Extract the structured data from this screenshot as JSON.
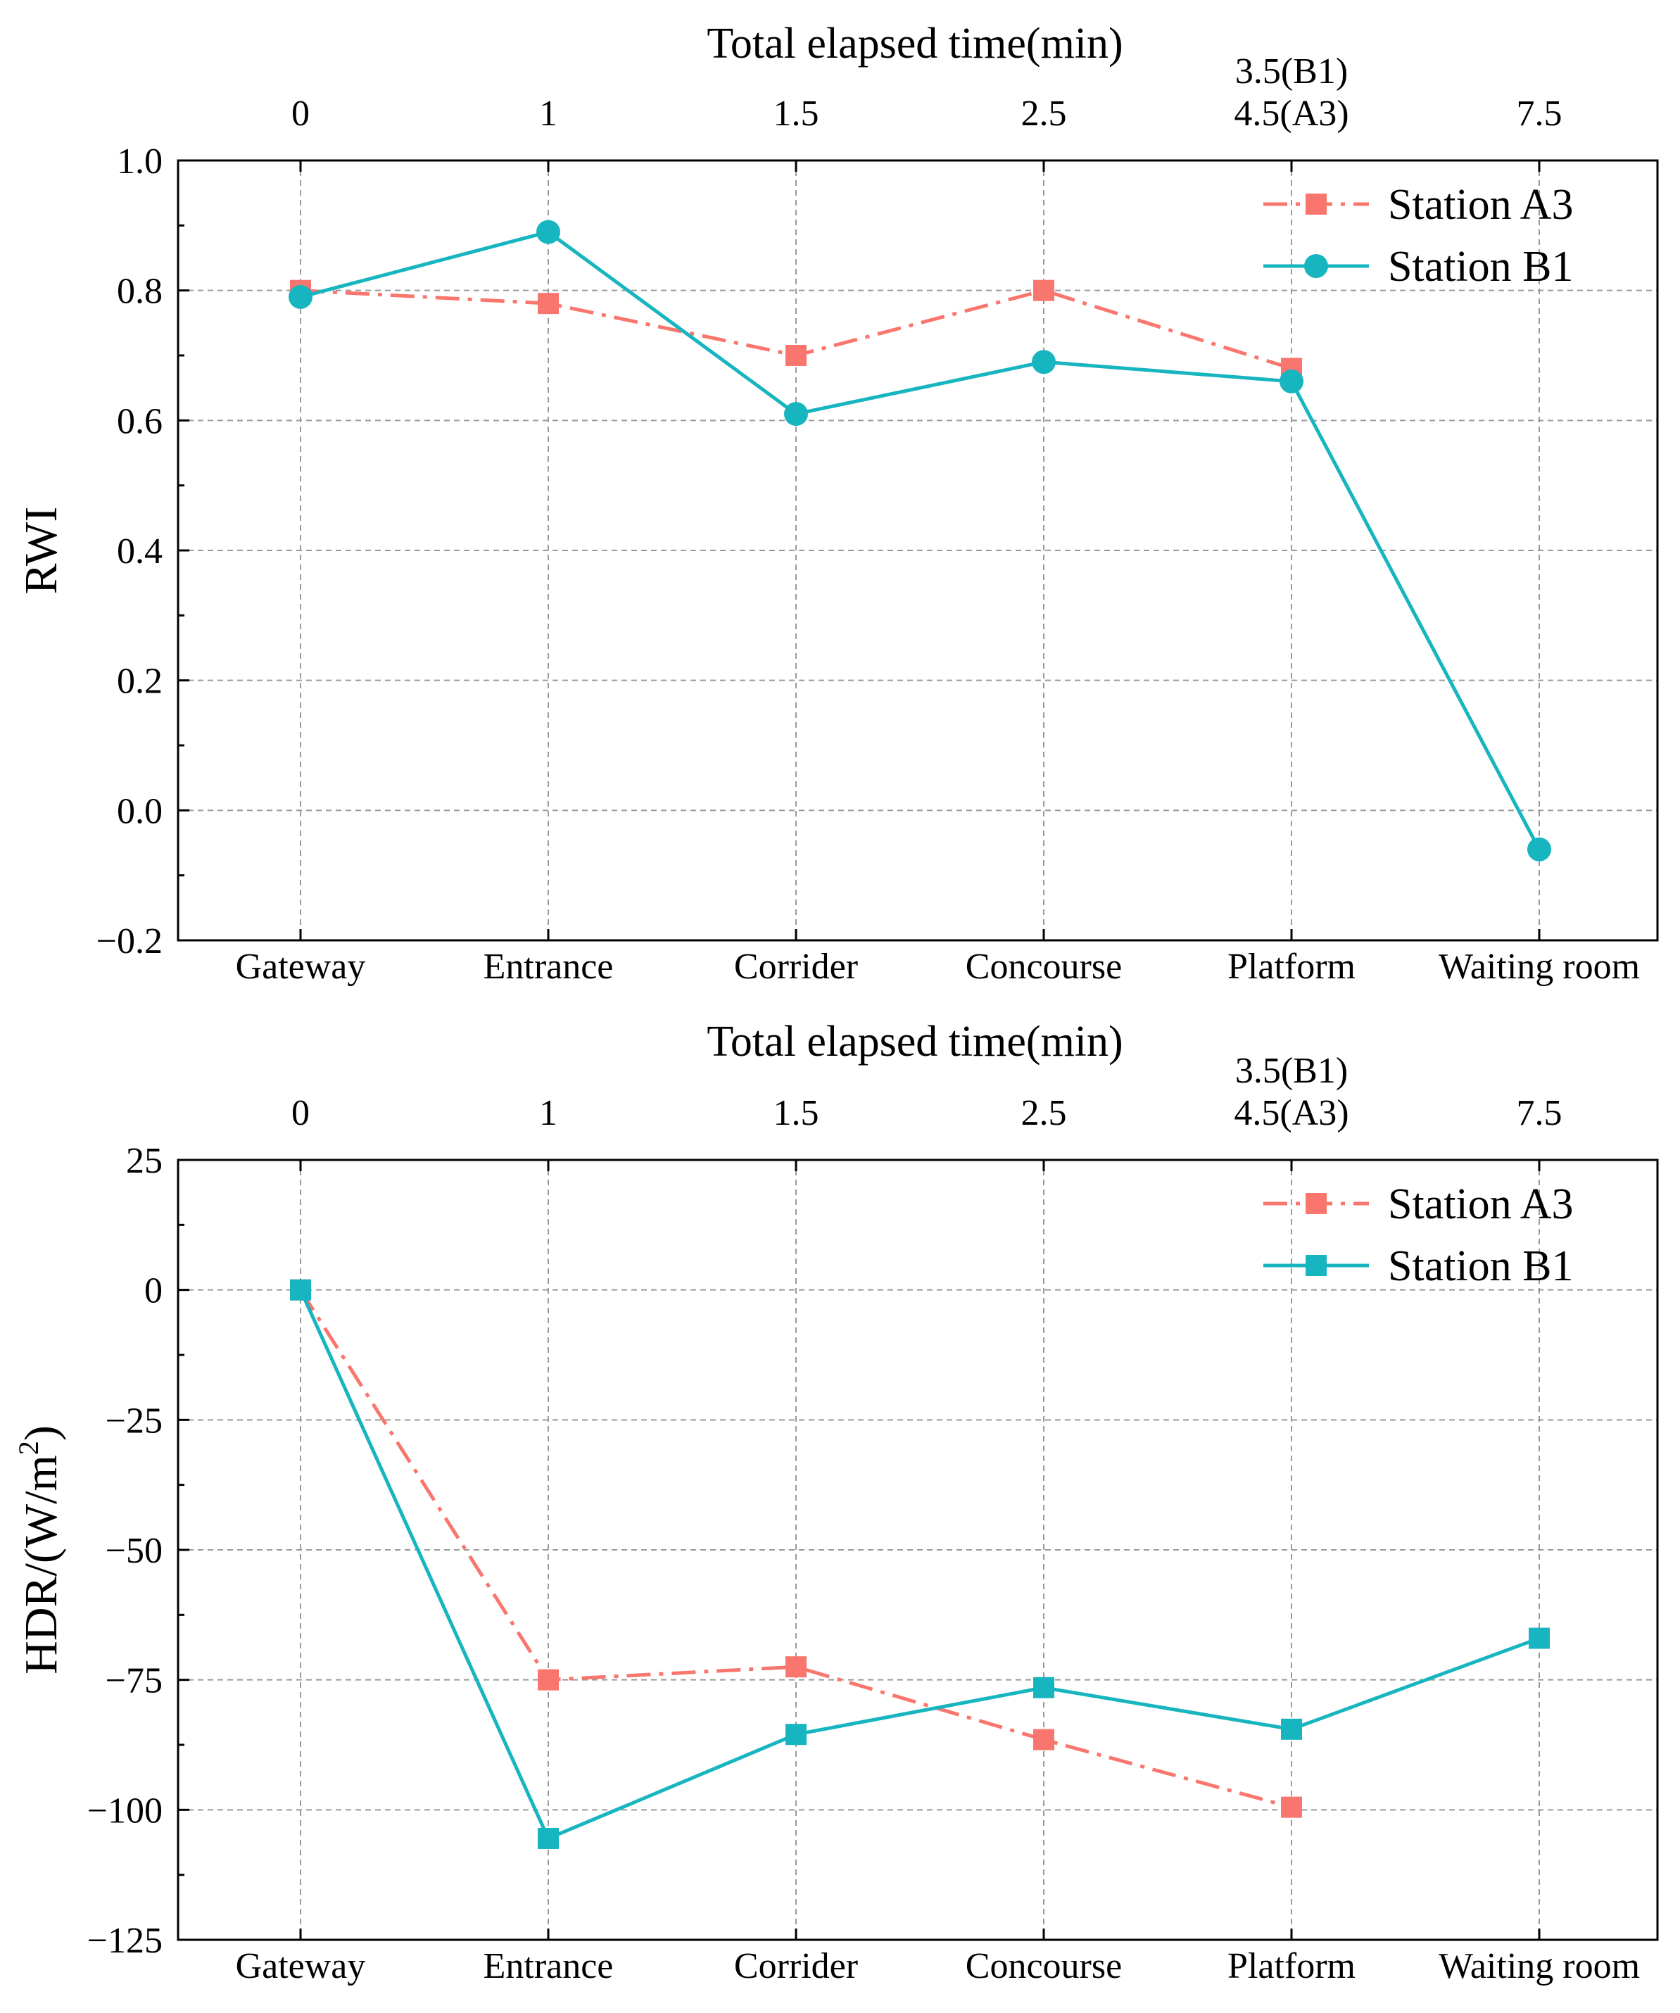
{
  "chart_data": [
    {
      "type": "line",
      "top_title": "Total elapsed time(min)",
      "top_ticks": [
        [
          "0"
        ],
        [
          "1"
        ],
        [
          "1.5"
        ],
        [
          "2.5"
        ],
        [
          "3.5(B1)",
          "4.5(A3)"
        ],
        [
          "7.5"
        ]
      ],
      "categories": [
        "Gateway",
        "Entrance",
        "Corrider",
        "Concourse",
        "Platform",
        "Waiting room"
      ],
      "ylabel": "RWI",
      "ylabel_sup": "",
      "ylabel_tail": "",
      "ylim": [
        -0.2,
        1.0
      ],
      "yticks": [
        -0.2,
        0.0,
        0.2,
        0.4,
        0.6,
        0.8,
        1.0
      ],
      "ytick_labels": [
        "−0.2",
        "0.0",
        "0.2",
        "0.4",
        "0.6",
        "0.8",
        "1.0"
      ],
      "grid": true,
      "legend_position": "top-right",
      "series": [
        {
          "name": "Station A3",
          "values": [
            0.8,
            0.78,
            0.7,
            0.8,
            0.68,
            null
          ],
          "color": "#f8766d",
          "dash": "dashdot",
          "marker": "square"
        },
        {
          "name": "Station B1",
          "values": [
            0.79,
            0.89,
            0.61,
            0.69,
            0.66,
            -0.06
          ],
          "color": "#17b5bf",
          "dash": "solid",
          "marker": "circle"
        }
      ]
    },
    {
      "type": "line",
      "top_title": "Total elapsed time(min)",
      "top_ticks": [
        [
          "0"
        ],
        [
          "1"
        ],
        [
          "1.5"
        ],
        [
          "2.5"
        ],
        [
          "3.5(B1)",
          "4.5(A3)"
        ],
        [
          "7.5"
        ]
      ],
      "categories": [
        "Gateway",
        "Entrance",
        "Corrider",
        "Concourse",
        "Platform",
        "Waiting room"
      ],
      "ylabel": "HDR/(W/m",
      "ylabel_sup": "2",
      "ylabel_tail": ")",
      "ylim": [
        -125,
        25
      ],
      "yticks": [
        -125,
        -100,
        -75,
        -50,
        -25,
        0,
        25
      ],
      "ytick_labels": [
        "−125",
        "−100",
        "−75",
        "−50",
        "−25",
        "0",
        "25"
      ],
      "grid": true,
      "legend_position": "top-right",
      "series": [
        {
          "name": "Station A3",
          "values": [
            0,
            -75,
            -72.5,
            -86.5,
            -99.5,
            null
          ],
          "color": "#f8766d",
          "dash": "dashdot",
          "marker": "square"
        },
        {
          "name": "Station B1",
          "values": [
            0,
            -105.5,
            -85.5,
            -76.5,
            -84.5,
            -67
          ],
          "color": "#17b5bf",
          "dash": "solid",
          "marker": "square"
        }
      ]
    }
  ]
}
